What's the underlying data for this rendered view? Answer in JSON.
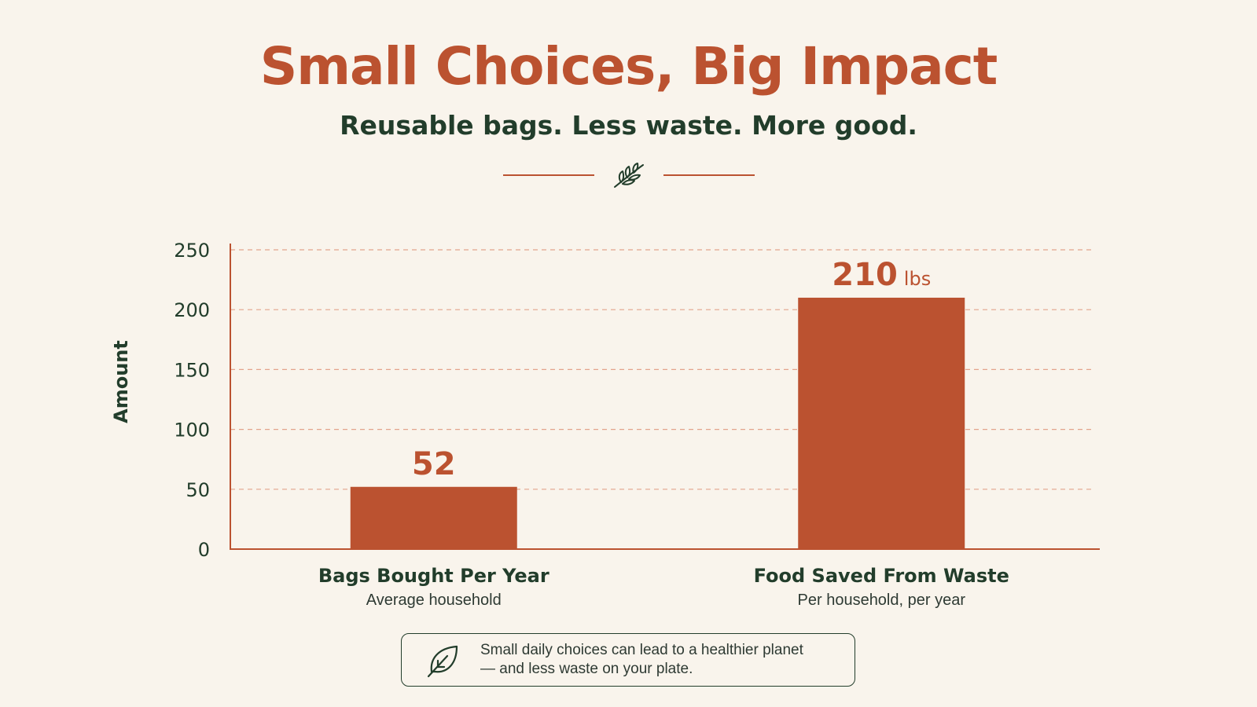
{
  "colors": {
    "background": "#f9f4ec",
    "accent": "#bb5230",
    "ink": "#223d2b",
    "text": "#2e3a33",
    "grid": "#e3a48c"
  },
  "header": {
    "title": "Small Choices, Big Impact",
    "subtitle": "Reusable bags. Less waste. More good.",
    "divider_icon": "leaf-sprig-icon"
  },
  "chart_data": {
    "type": "bar",
    "ylabel": "Amount",
    "ylim": [
      0,
      250
    ],
    "yticks": [
      0,
      50,
      100,
      150,
      200,
      250
    ],
    "grid": true,
    "categories": [
      "Bags Bought Per Year",
      "Food Saved From Waste"
    ],
    "category_subtitles": [
      "Average household",
      "Per household, per year"
    ],
    "values": [
      52,
      210
    ],
    "value_labels": [
      "52",
      "210"
    ],
    "value_units": [
      "",
      "lbs"
    ]
  },
  "note": {
    "icon": "leaf-icon",
    "line1": "Small daily choices can lead to a healthier planet",
    "line2": "— and less waste on your plate."
  }
}
